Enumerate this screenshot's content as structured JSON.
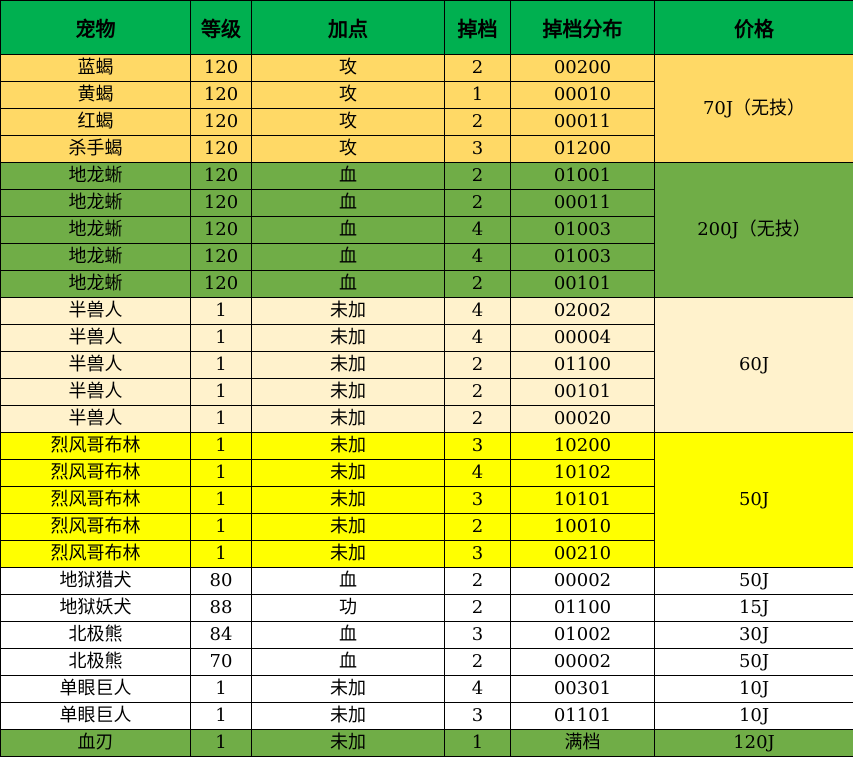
{
  "header": [
    "宠物",
    "等级",
    "加点",
    "掉档",
    "掉档分布",
    "价格"
  ],
  "colors": {
    "header": "#00B050",
    "orange": "#FFD966",
    "green": "#70AD47",
    "cream": "#FFF2CC",
    "yellow": "#FFFF00",
    "white": "#FFFFFF"
  },
  "groups": [
    {
      "color": "orange",
      "price": "70J（无技）",
      "rows": [
        [
          "蓝蝎",
          "120",
          "攻",
          "2",
          "00200"
        ],
        [
          "黄蝎",
          "120",
          "攻",
          "1",
          "00010"
        ],
        [
          "红蝎",
          "120",
          "攻",
          "2",
          "00011"
        ],
        [
          "杀手蝎",
          "120",
          "攻",
          "3",
          "01200"
        ]
      ]
    },
    {
      "color": "green",
      "price": "200J（无技）",
      "rows": [
        [
          "地龙蜥",
          "120",
          "血",
          "2",
          "01001"
        ],
        [
          "地龙蜥",
          "120",
          "血",
          "2",
          "00011"
        ],
        [
          "地龙蜥",
          "120",
          "血",
          "4",
          "01003"
        ],
        [
          "地龙蜥",
          "120",
          "血",
          "4",
          "01003"
        ],
        [
          "地龙蜥",
          "120",
          "血",
          "2",
          "00101"
        ]
      ]
    },
    {
      "color": "cream",
      "price": "60J",
      "rows": [
        [
          "半兽人",
          "1",
          "未加",
          "4",
          "02002"
        ],
        [
          "半兽人",
          "1",
          "未加",
          "4",
          "00004"
        ],
        [
          "半兽人",
          "1",
          "未加",
          "2",
          "01100"
        ],
        [
          "半兽人",
          "1",
          "未加",
          "2",
          "00101"
        ],
        [
          "半兽人",
          "1",
          "未加",
          "2",
          "00020"
        ]
      ]
    },
    {
      "color": "yellow",
      "price": "50J",
      "rows": [
        [
          "烈风哥布林",
          "1",
          "未加",
          "3",
          "10200"
        ],
        [
          "烈风哥布林",
          "1",
          "未加",
          "4",
          "10102"
        ],
        [
          "烈风哥布林",
          "1",
          "未加",
          "3",
          "10101"
        ],
        [
          "烈风哥布林",
          "1",
          "未加",
          "2",
          "10010"
        ],
        [
          "烈风哥布林",
          "1",
          "未加",
          "3",
          "00210"
        ]
      ]
    },
    {
      "color": "white",
      "price": "50J",
      "rows": [
        [
          "地狱猎犬",
          "80",
          "血",
          "2",
          "00002"
        ]
      ]
    },
    {
      "color": "white",
      "price": "15J",
      "rows": [
        [
          "地狱妖犬",
          "88",
          "功",
          "2",
          "01100"
        ]
      ]
    },
    {
      "color": "white",
      "price": "30J",
      "rows": [
        [
          "北极熊",
          "84",
          "血",
          "3",
          "01002"
        ]
      ]
    },
    {
      "color": "white",
      "price": "50J",
      "rows": [
        [
          "北极熊",
          "70",
          "血",
          "2",
          "00002"
        ]
      ]
    },
    {
      "color": "white",
      "price": "10J",
      "rows": [
        [
          "单眼巨人",
          "1",
          "未加",
          "4",
          "00301"
        ]
      ]
    },
    {
      "color": "white",
      "price": "10J",
      "rows": [
        [
          "单眼巨人",
          "1",
          "未加",
          "3",
          "01101"
        ]
      ]
    },
    {
      "color": "green",
      "price": "120J",
      "rows": [
        [
          "血刃",
          "1",
          "未加",
          "1",
          "满档"
        ]
      ]
    }
  ]
}
